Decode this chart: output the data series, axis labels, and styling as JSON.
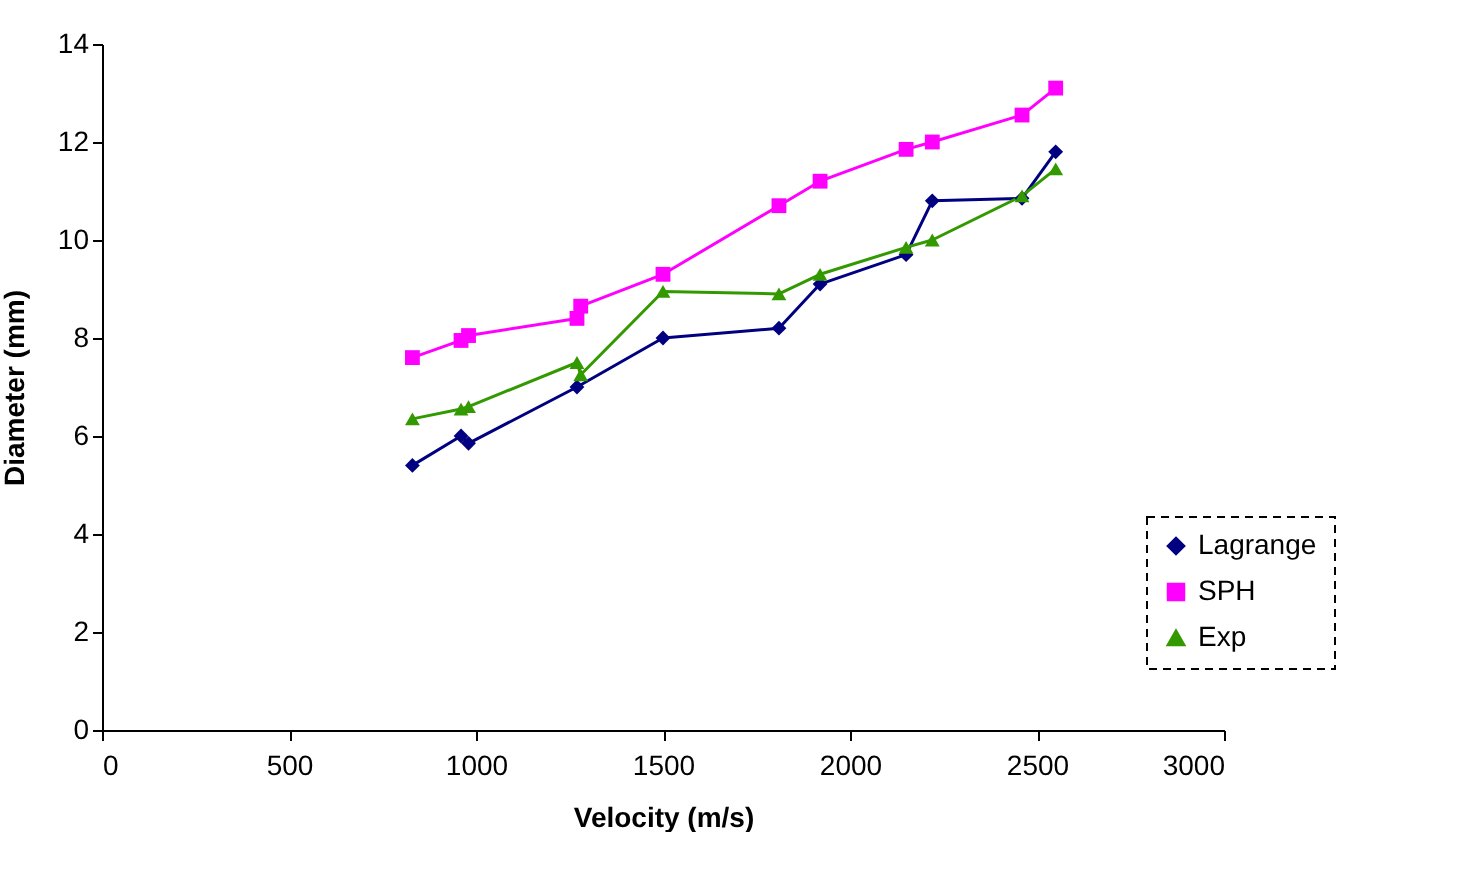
{
  "chart_data": {
    "type": "line",
    "xlabel": "Velocity (m/s)",
    "ylabel": "Diameter (mm)",
    "xlim": [
      0,
      3000
    ],
    "xticks": [
      0,
      500,
      1000,
      1500,
      2000,
      2500,
      3000
    ],
    "ylim": [
      0,
      14
    ],
    "yticks": [
      0,
      2,
      4,
      6,
      8,
      10,
      12,
      14
    ],
    "grid": false,
    "legend": "bottom right",
    "line_style": "solid",
    "series": [
      {
        "name": "Lagrange",
        "color": "#000080",
        "marker": "diamond",
        "x": [
          830,
          960,
          980,
          1270,
          1500,
          1810,
          1920,
          2150,
          2220,
          2460,
          2550
        ],
        "values": [
          5.4,
          6.0,
          5.85,
          7.0,
          8.0,
          8.2,
          9.1,
          9.7,
          10.8,
          10.85,
          11.8
        ]
      },
      {
        "name": "SPH",
        "color": "#ff00ff",
        "marker": "square",
        "x": [
          830,
          960,
          980,
          1270,
          1280,
          1500,
          1810,
          1920,
          2150,
          2220,
          2460,
          2550
        ],
        "values": [
          7.6,
          7.95,
          8.05,
          8.4,
          8.65,
          9.3,
          10.7,
          11.2,
          11.85,
          12.0,
          12.55,
          13.1
        ]
      },
      {
        "name": "Exp",
        "color": "#339900",
        "marker": "triangle",
        "x": [
          830,
          960,
          980,
          1270,
          1280,
          1500,
          1810,
          1920,
          2150,
          2220,
          2460,
          2550
        ],
        "values": [
          6.35,
          6.55,
          6.6,
          7.5,
          7.25,
          8.95,
          8.9,
          9.3,
          9.85,
          10.0,
          10.9,
          11.45
        ]
      }
    ]
  }
}
